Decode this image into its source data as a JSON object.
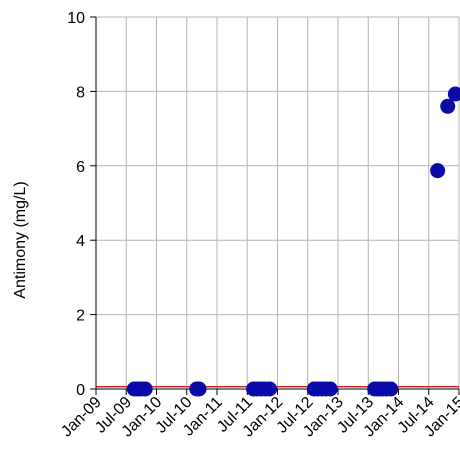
{
  "chart_data": {
    "type": "scatter",
    "title": "",
    "xlabel": "",
    "ylabel": "Antimony (mg/L)",
    "x_ticks": [
      "Jan-09",
      "Jul-09",
      "Jan-10",
      "Jul-10",
      "Jan-11",
      "Jul-11",
      "Jan-12",
      "Jul-12",
      "Jan-13",
      "Jul-13",
      "Jan-14",
      "Jul-14",
      "Jan-15"
    ],
    "x_range": [
      "2009-01-01",
      "2015-01-01"
    ],
    "ylim": [
      0,
      10
    ],
    "y_ticks": [
      0,
      2,
      4,
      6,
      8,
      10
    ],
    "grid": true,
    "reference_line": {
      "y": 0.06,
      "color": "#cc0000"
    },
    "colors": {
      "points": "#0a0aa8",
      "grid": "#b4b4b4",
      "axis": "#000000"
    },
    "series": [
      {
        "points": [
          {
            "x": "2009-08-20",
            "y": 0
          },
          {
            "x": "2009-09-10",
            "y": 0
          },
          {
            "x": "2009-10-01",
            "y": 0
          },
          {
            "x": "2009-10-25",
            "y": 0
          },
          {
            "x": "2010-09-01",
            "y": 0
          },
          {
            "x": "2010-09-15",
            "y": 0
          },
          {
            "x": "2011-08-10",
            "y": 0
          },
          {
            "x": "2011-09-01",
            "y": 0
          },
          {
            "x": "2011-09-25",
            "y": 0
          },
          {
            "x": "2011-10-20",
            "y": 0
          },
          {
            "x": "2011-11-15",
            "y": 0
          },
          {
            "x": "2012-08-10",
            "y": 0
          },
          {
            "x": "2012-09-01",
            "y": 0
          },
          {
            "x": "2012-09-25",
            "y": 0
          },
          {
            "x": "2012-10-20",
            "y": 0
          },
          {
            "x": "2012-11-15",
            "y": 0
          },
          {
            "x": "2013-08-10",
            "y": 0
          },
          {
            "x": "2013-09-01",
            "y": 0
          },
          {
            "x": "2013-09-25",
            "y": 0
          },
          {
            "x": "2013-10-20",
            "y": 0
          },
          {
            "x": "2013-11-15",
            "y": 0
          },
          {
            "x": "2014-08-25",
            "y": 5.87
          },
          {
            "x": "2014-10-25",
            "y": 7.6
          },
          {
            "x": "2014-12-10",
            "y": 7.93
          }
        ]
      }
    ]
  }
}
